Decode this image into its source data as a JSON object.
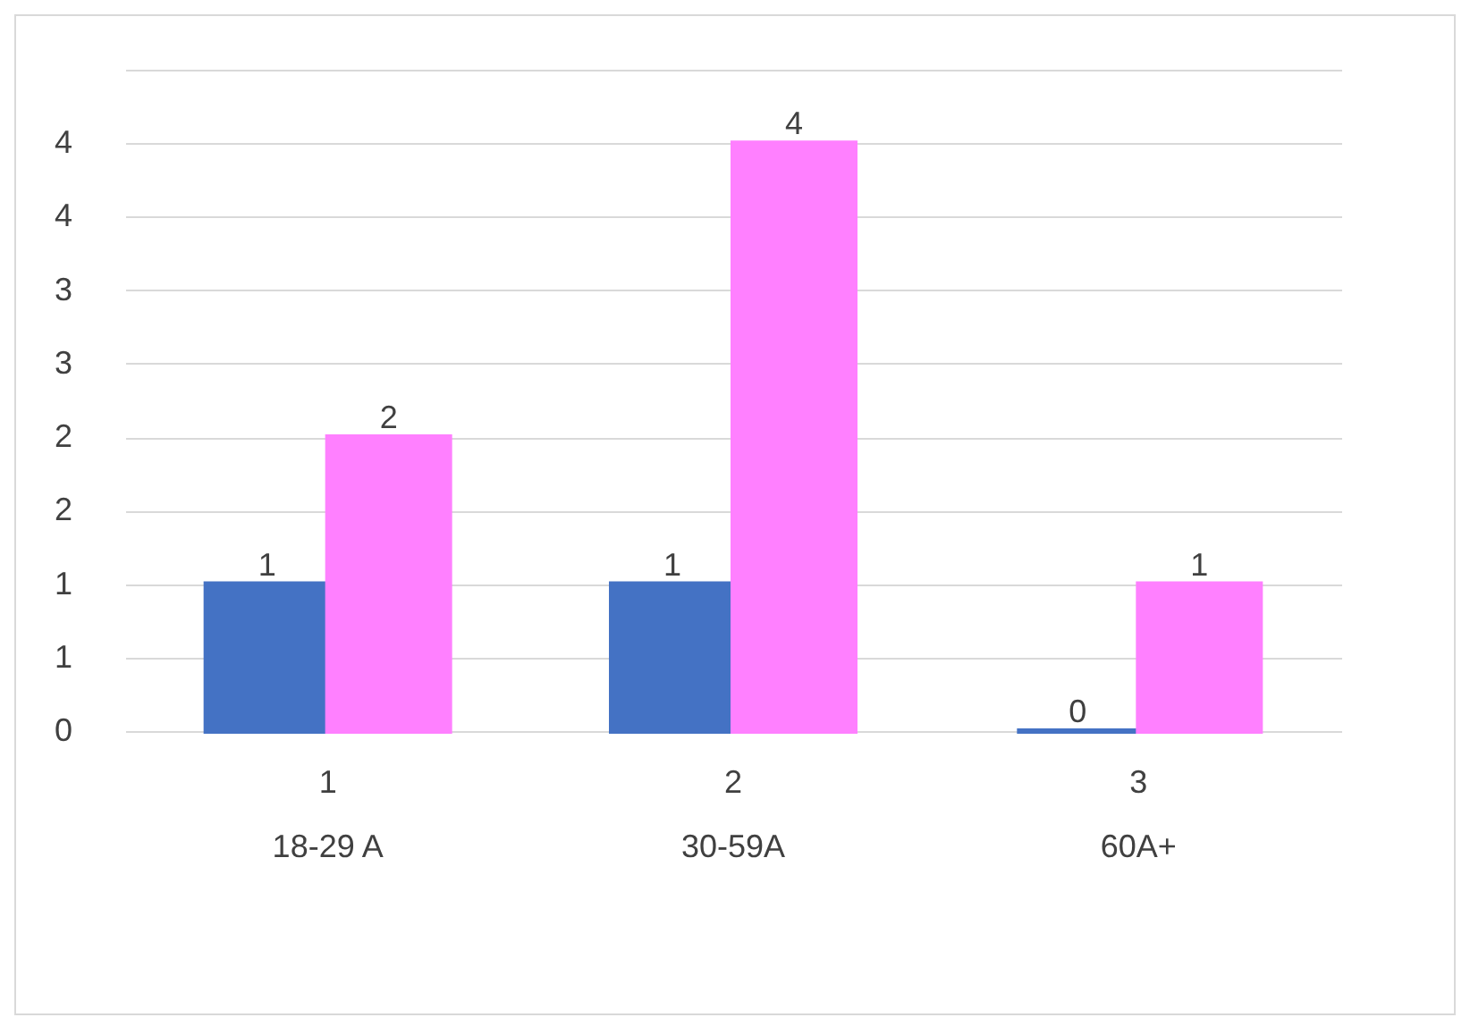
{
  "chart_data": {
    "type": "bar",
    "categories": [
      "1\n18-29 A",
      "2\n30-59A",
      "3\n60A+"
    ],
    "series": [
      {
        "color": "#4472c4",
        "values": [
          1,
          1,
          0
        ]
      },
      {
        "color": "#ff80ff",
        "values": [
          2,
          4,
          1
        ]
      }
    ],
    "ylim": [
      0,
      4.5
    ],
    "yticks": [
      0,
      {
        "value": 0.5,
        "label": "1"
      },
      1,
      {
        "value": 1.5,
        "label": "2"
      },
      2,
      {
        "value": 2.5,
        "label": "3"
      },
      3,
      {
        "value": 3.5,
        "label": "4"
      },
      4,
      {
        "value": 4.5,
        "label": null
      }
    ],
    "grid": "y",
    "data_labels": true
  }
}
